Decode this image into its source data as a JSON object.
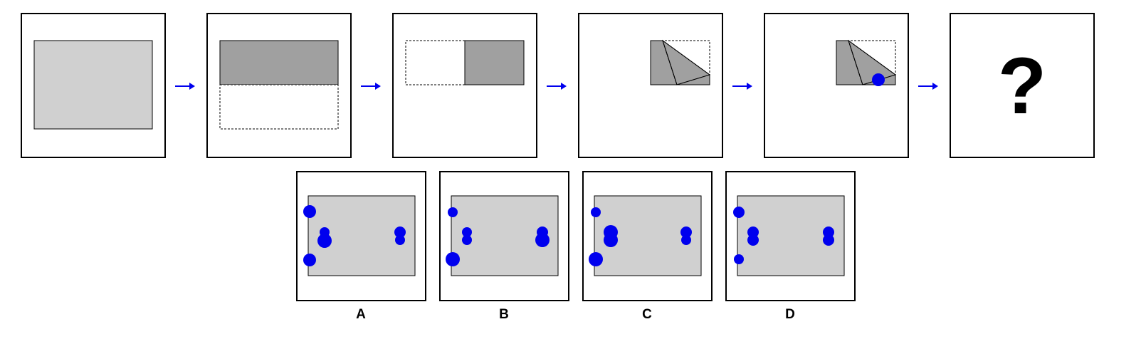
{
  "question_mark": "?",
  "colors": {
    "paper": "#d0d0d0",
    "folded": "#a0a0a0",
    "hole": "#0000ee",
    "arrow": "#0000ee"
  },
  "options": [
    {
      "label": "A"
    },
    {
      "label": "B"
    },
    {
      "label": "C"
    },
    {
      "label": "D"
    }
  ]
}
